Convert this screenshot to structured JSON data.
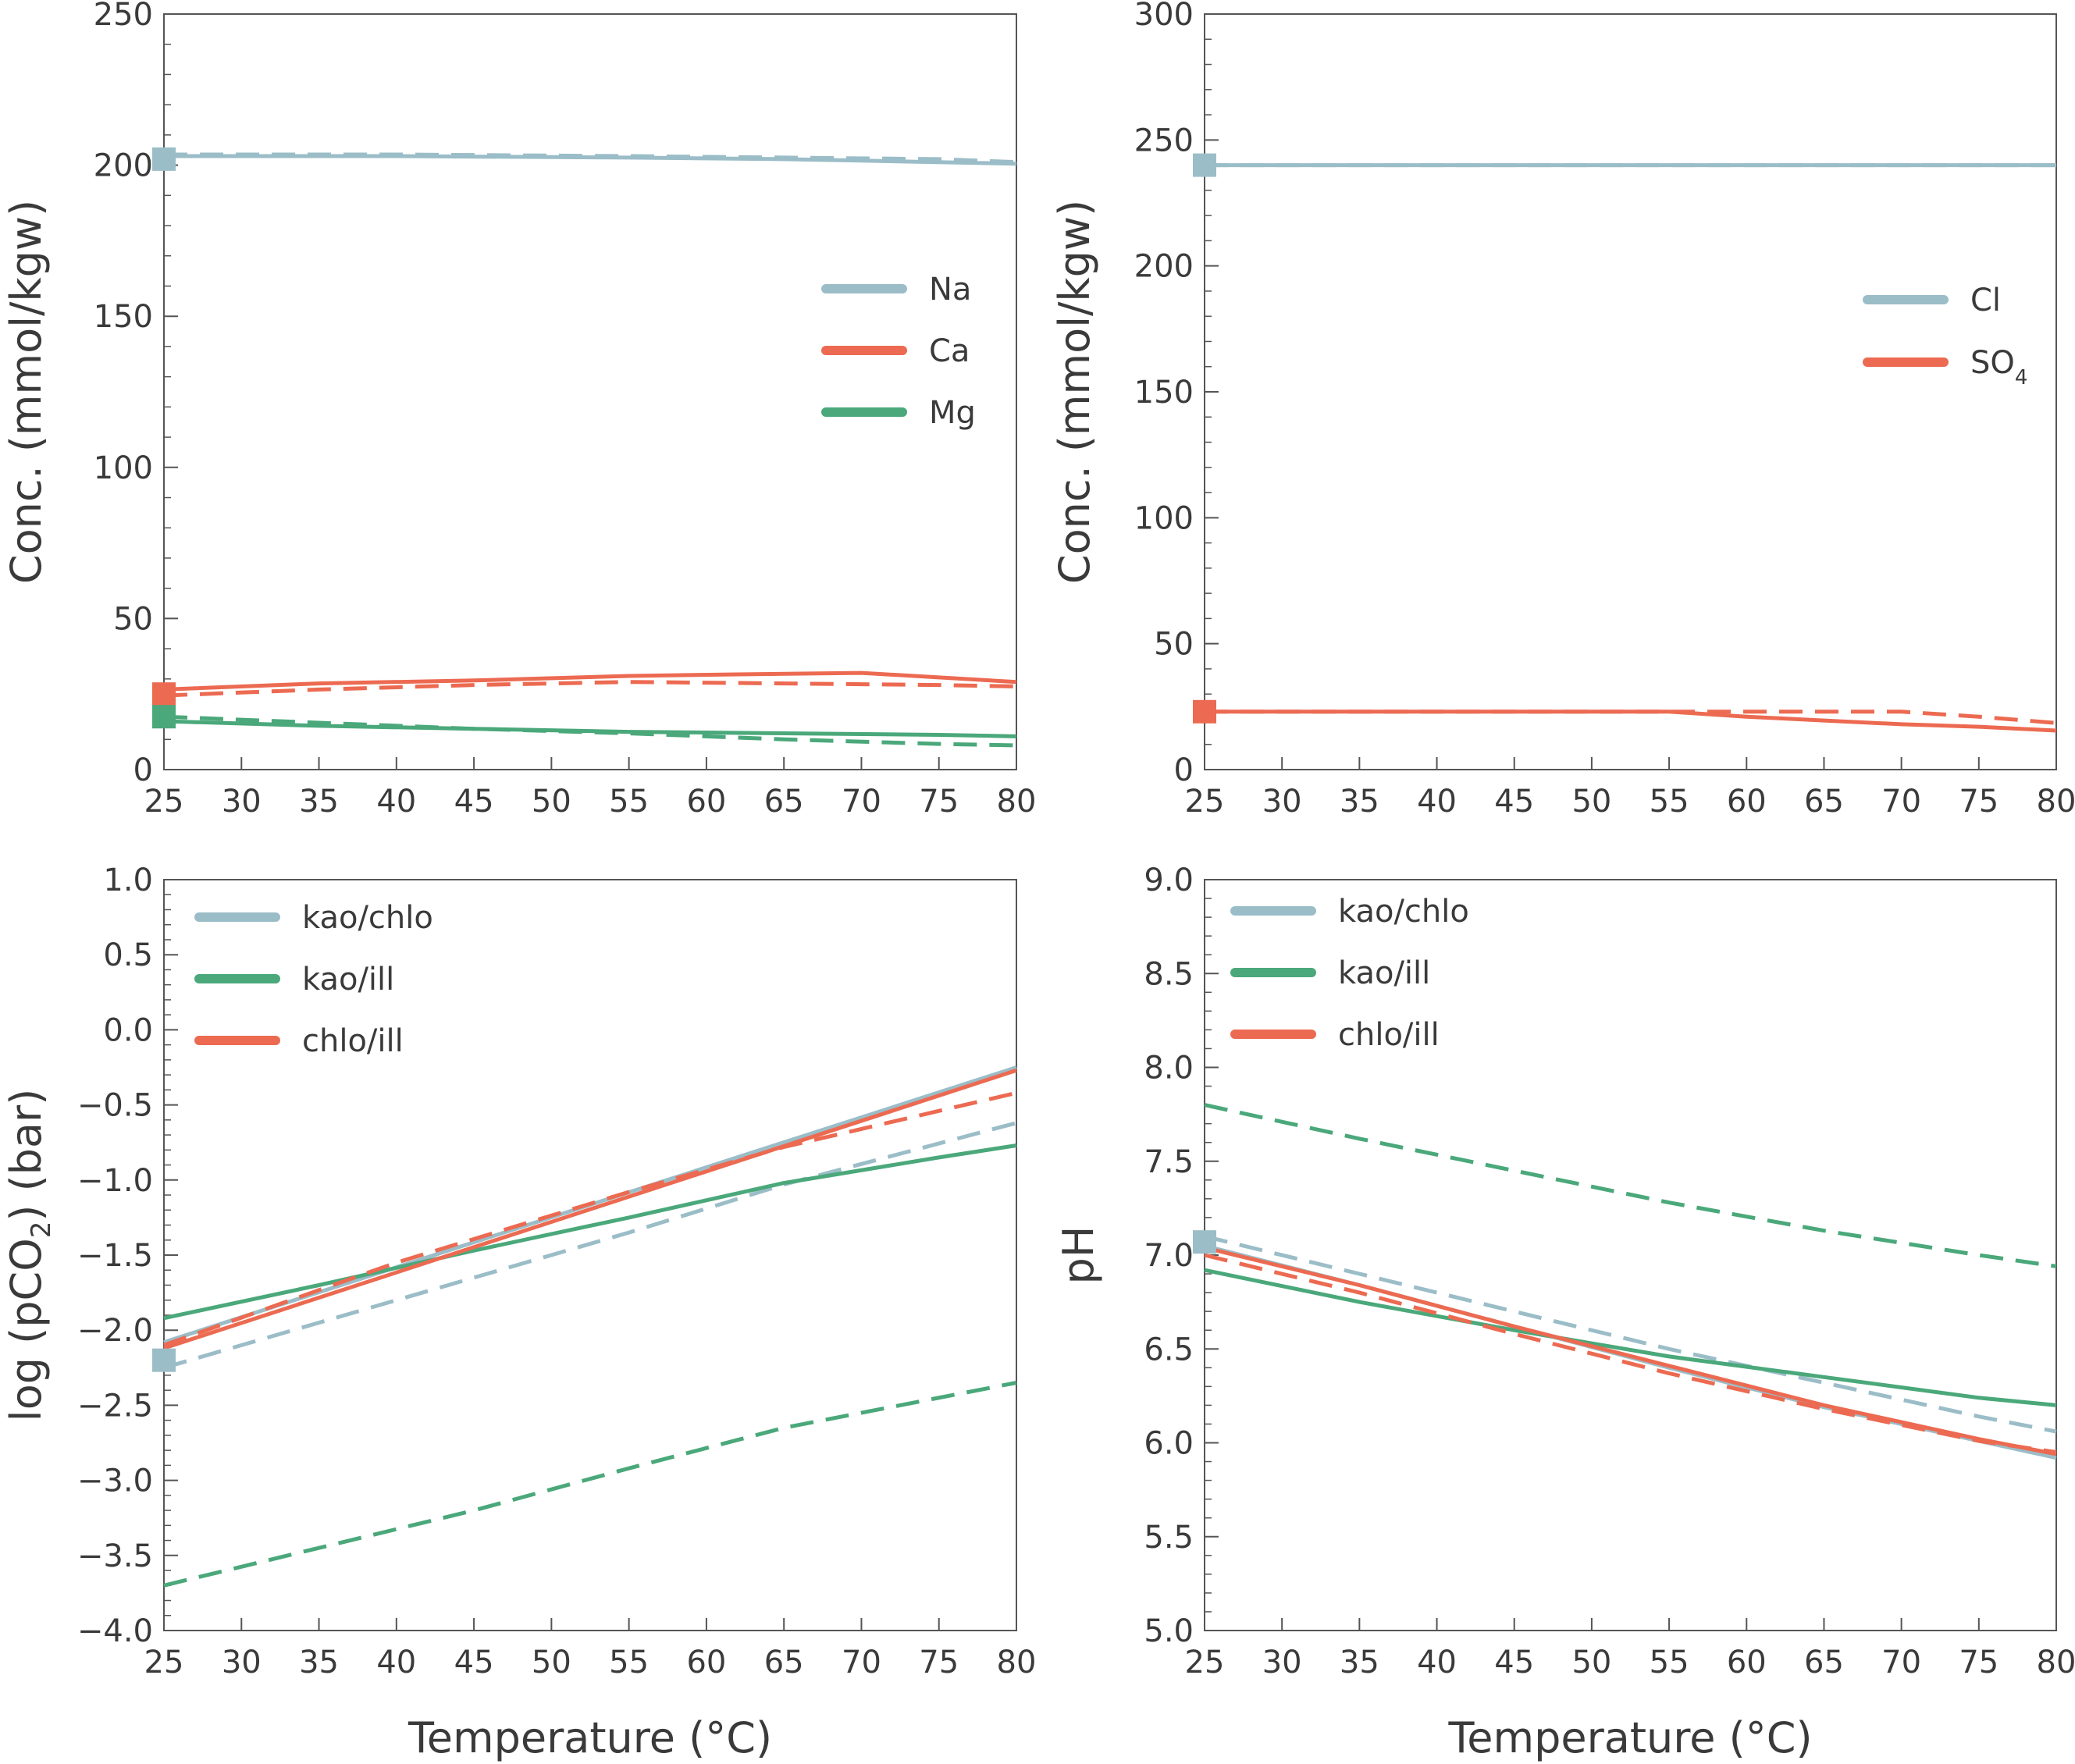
{
  "colors": {
    "na": "#9bbdc8",
    "ca": "#ec6a51",
    "mg": "#4aa87a",
    "axis": "#555555",
    "text": "#3a3a3a"
  },
  "chart_data": [
    {
      "id": "cations",
      "type": "line",
      "xlabel": "",
      "ylabel": "Conc. (mmol/kgw)",
      "xlim": [
        25,
        80
      ],
      "ylim": [
        0,
        250
      ],
      "xticks": [
        25,
        30,
        35,
        40,
        45,
        50,
        55,
        60,
        65,
        70,
        75,
        80
      ],
      "yticks": [
        0,
        50,
        100,
        150,
        200,
        250
      ],
      "legend_position": "right-middle",
      "legend": [
        {
          "label": "Na",
          "color_key": "na"
        },
        {
          "label": "Ca",
          "color_key": "ca"
        },
        {
          "label": "Mg",
          "color_key": "mg"
        }
      ],
      "series": [
        {
          "name": "Na",
          "color_key": "na",
          "style": "solid",
          "points": [
            [
              25,
              203
            ],
            [
              40,
              203
            ],
            [
              55,
              202.5
            ],
            [
              65,
              202
            ],
            [
              70,
              201.5
            ],
            [
              80,
              200.5
            ]
          ]
        },
        {
          "name": "Na",
          "color_key": "na",
          "style": "dashed",
          "points": [
            [
              25,
              203.5
            ],
            [
              40,
              203.5
            ],
            [
              55,
              203
            ],
            [
              65,
              202.5
            ],
            [
              75,
              202
            ],
            [
              80,
              201
            ]
          ]
        },
        {
          "name": "Ca",
          "color_key": "ca",
          "style": "solid",
          "points": [
            [
              25,
              26.5
            ],
            [
              35,
              28.5
            ],
            [
              45,
              29.5
            ],
            [
              55,
              31
            ],
            [
              62,
              31.5
            ],
            [
              70,
              32
            ],
            [
              75,
              30.5
            ],
            [
              80,
              29
            ]
          ]
        },
        {
          "name": "Ca",
          "color_key": "ca",
          "style": "dashed",
          "points": [
            [
              25,
              24.5
            ],
            [
              35,
              26.5
            ],
            [
              45,
              28
            ],
            [
              55,
              29
            ],
            [
              65,
              28.5
            ],
            [
              75,
              28
            ],
            [
              80,
              27.5
            ]
          ]
        },
        {
          "name": "Mg",
          "color_key": "mg",
          "style": "solid",
          "points": [
            [
              25,
              16
            ],
            [
              35,
              14.5
            ],
            [
              45,
              13.5
            ],
            [
              55,
              12.5
            ],
            [
              65,
              12
            ],
            [
              75,
              11.5
            ],
            [
              80,
              11
            ]
          ]
        },
        {
          "name": "Mg",
          "color_key": "mg",
          "style": "dashed",
          "points": [
            [
              25,
              17.5
            ],
            [
              35,
              15.5
            ],
            [
              45,
              13.5
            ],
            [
              55,
              12
            ],
            [
              65,
              10
            ],
            [
              75,
              8.5
            ],
            [
              80,
              8
            ]
          ]
        }
      ],
      "initial_markers": [
        {
          "x": 25,
          "y": 202,
          "color_key": "na"
        },
        {
          "x": 25,
          "y": 25,
          "color_key": "ca"
        },
        {
          "x": 25,
          "y": 17.5,
          "color_key": "mg"
        }
      ]
    },
    {
      "id": "anions",
      "type": "line",
      "xlabel": "",
      "ylabel": "Conc. (mmol/kgw)",
      "xlim": [
        25,
        80
      ],
      "ylim": [
        0,
        300
      ],
      "xticks": [
        25,
        30,
        35,
        40,
        45,
        50,
        55,
        60,
        65,
        70,
        75,
        80
      ],
      "yticks": [
        0,
        50,
        100,
        150,
        200,
        250,
        300
      ],
      "legend_position": "right-middle",
      "legend": [
        {
          "label": "Cl",
          "sub": "",
          "color_key": "na"
        },
        {
          "label": "SO",
          "sub": "4",
          "color_key": "ca"
        }
      ],
      "series": [
        {
          "name": "Cl",
          "color_key": "na",
          "style": "solid",
          "points": [
            [
              25,
              240
            ],
            [
              55,
              240
            ],
            [
              65,
              240
            ],
            [
              80,
              240
            ]
          ]
        },
        {
          "name": "Cl",
          "color_key": "na",
          "style": "dashed",
          "points": [
            [
              25,
              240
            ],
            [
              55,
              240
            ],
            [
              80,
              240
            ]
          ]
        },
        {
          "name": "SO4",
          "color_key": "ca",
          "style": "solid",
          "points": [
            [
              25,
              23
            ],
            [
              45,
              23
            ],
            [
              55,
              23
            ],
            [
              60,
              21
            ],
            [
              65,
              19.5
            ],
            [
              70,
              18
            ],
            [
              75,
              17
            ],
            [
              80,
              15.5
            ]
          ]
        },
        {
          "name": "SO4",
          "color_key": "ca",
          "style": "dashed",
          "points": [
            [
              25,
              23
            ],
            [
              55,
              23
            ],
            [
              65,
              23
            ],
            [
              70,
              23
            ],
            [
              75,
              21
            ],
            [
              80,
              18.5
            ]
          ]
        }
      ],
      "initial_markers": [
        {
          "x": 25,
          "y": 240,
          "color_key": "na"
        },
        {
          "x": 25,
          "y": 23,
          "color_key": "ca"
        }
      ]
    },
    {
      "id": "pco2",
      "type": "line",
      "xlabel": "Temperature (°C)",
      "ylabel": "log (pCO",
      "ylabel_sub": "2",
      "ylabel_tail": ") (bar)",
      "xlim": [
        25,
        80
      ],
      "ylim": [
        -4.0,
        1.0
      ],
      "xticks": [
        25,
        30,
        35,
        40,
        45,
        50,
        55,
        60,
        65,
        70,
        75,
        80
      ],
      "yticks": [
        -4.0,
        -3.5,
        -3.0,
        -2.5,
        -2.0,
        -1.5,
        -1.0,
        -0.5,
        0.0,
        0.5,
        1.0
      ],
      "ytick_labels": [
        "−4.0",
        "−3.5",
        "−3.0",
        "−2.5",
        "−2.0",
        "−1.5",
        "−1.0",
        "−0.5",
        "0.0",
        "0.5",
        "1.0"
      ],
      "legend_position": "top-left",
      "legend": [
        {
          "label": "kao/chlo",
          "color_key": "na"
        },
        {
          "label": "kao/ill",
          "color_key": "mg"
        },
        {
          "label": "chlo/ill",
          "color_key": "ca"
        }
      ],
      "series": [
        {
          "name": "kao/chlo",
          "color_key": "na",
          "style": "solid",
          "points": [
            [
              25,
              -2.08
            ],
            [
              80,
              -0.25
            ]
          ]
        },
        {
          "name": "kao/chlo",
          "color_key": "na",
          "style": "dashed",
          "points": [
            [
              25,
              -2.25
            ],
            [
              35,
              -1.95
            ],
            [
              45,
              -1.65
            ],
            [
              55,
              -1.35
            ],
            [
              65,
              -1.03
            ],
            [
              80,
              -0.62
            ]
          ]
        },
        {
          "name": "kao/ill",
          "color_key": "mg",
          "style": "solid",
          "points": [
            [
              25,
              -1.92
            ],
            [
              35,
              -1.7
            ],
            [
              45,
              -1.47
            ],
            [
              55,
              -1.25
            ],
            [
              65,
              -1.02
            ],
            [
              75,
              -0.85
            ],
            [
              80,
              -0.77
            ]
          ]
        },
        {
          "name": "kao/ill",
          "color_key": "mg",
          "style": "dashed",
          "points": [
            [
              25,
              -3.7
            ],
            [
              35,
              -3.45
            ],
            [
              45,
              -3.2
            ],
            [
              55,
              -2.92
            ],
            [
              65,
              -2.65
            ],
            [
              80,
              -2.35
            ]
          ]
        },
        {
          "name": "chlo/ill",
          "color_key": "ca",
          "style": "solid",
          "points": [
            [
              25,
              -2.12
            ],
            [
              80,
              -0.27
            ]
          ]
        },
        {
          "name": "chlo/ill",
          "color_key": "ca",
          "style": "dashed",
          "points": [
            [
              25,
              -2.1
            ],
            [
              40,
              -1.55
            ],
            [
              55,
              -1.08
            ],
            [
              65,
              -0.78
            ],
            [
              80,
              -0.42
            ]
          ]
        }
      ],
      "initial_markers": [
        {
          "x": 25,
          "y": -2.2,
          "color_key": "na"
        }
      ]
    },
    {
      "id": "ph",
      "type": "line",
      "xlabel": "Temperature (°C)",
      "ylabel": "pH",
      "xlim": [
        25,
        80
      ],
      "ylim": [
        5.0,
        9.0
      ],
      "xticks": [
        25,
        30,
        35,
        40,
        45,
        50,
        55,
        60,
        65,
        70,
        75,
        80
      ],
      "yticks": [
        5.0,
        5.5,
        6.0,
        6.5,
        7.0,
        7.5,
        8.0,
        8.5,
        9.0
      ],
      "ytick_labels": [
        "5.0",
        "5.5",
        "6.0",
        "6.5",
        "7.0",
        "7.5",
        "8.0",
        "8.5",
        "9.0"
      ],
      "legend_position": "top-left",
      "legend": [
        {
          "label": "kao/chlo",
          "color_key": "na"
        },
        {
          "label": "kao/ill",
          "color_key": "mg"
        },
        {
          "label": "chlo/ill",
          "color_key": "ca"
        }
      ],
      "series": [
        {
          "name": "kao/chlo",
          "color_key": "na",
          "style": "solid",
          "points": [
            [
              25,
              7.05
            ],
            [
              35,
              6.84
            ],
            [
              45,
              6.62
            ],
            [
              55,
              6.4
            ],
            [
              65,
              6.19
            ],
            [
              75,
              6.01
            ],
            [
              80,
              5.92
            ]
          ]
        },
        {
          "name": "kao/chlo",
          "color_key": "na",
          "style": "dashed",
          "points": [
            [
              25,
              7.1
            ],
            [
              35,
              6.9
            ],
            [
              45,
              6.7
            ],
            [
              55,
              6.5
            ],
            [
              65,
              6.32
            ],
            [
              75,
              6.14
            ],
            [
              80,
              6.06
            ]
          ]
        },
        {
          "name": "kao/ill",
          "color_key": "mg",
          "style": "solid",
          "points": [
            [
              25,
              6.92
            ],
            [
              35,
              6.75
            ],
            [
              45,
              6.6
            ],
            [
              55,
              6.46
            ],
            [
              65,
              6.35
            ],
            [
              75,
              6.24
            ],
            [
              80,
              6.2
            ]
          ]
        },
        {
          "name": "kao/ill",
          "color_key": "mg",
          "style": "dashed",
          "points": [
            [
              25,
              7.8
            ],
            [
              35,
              7.62
            ],
            [
              45,
              7.45
            ],
            [
              55,
              7.28
            ],
            [
              65,
              7.13
            ],
            [
              75,
              7.0
            ],
            [
              80,
              6.94
            ]
          ]
        },
        {
          "name": "chlo/ill",
          "color_key": "ca",
          "style": "solid",
          "points": [
            [
              25,
              7.04
            ],
            [
              35,
              6.84
            ],
            [
              45,
              6.62
            ],
            [
              55,
              6.41
            ],
            [
              65,
              6.2
            ],
            [
              75,
              6.02
            ],
            [
              80,
              5.94
            ]
          ]
        },
        {
          "name": "chlo/ill",
          "color_key": "ca",
          "style": "dashed",
          "points": [
            [
              25,
              7.0
            ],
            [
              35,
              6.8
            ],
            [
              45,
              6.58
            ],
            [
              55,
              6.37
            ],
            [
              65,
              6.18
            ],
            [
              75,
              6.01
            ],
            [
              80,
              5.95
            ]
          ]
        }
      ],
      "initial_markers": [
        {
          "x": 25,
          "y": 7.07,
          "color_key": "na"
        }
      ]
    }
  ]
}
